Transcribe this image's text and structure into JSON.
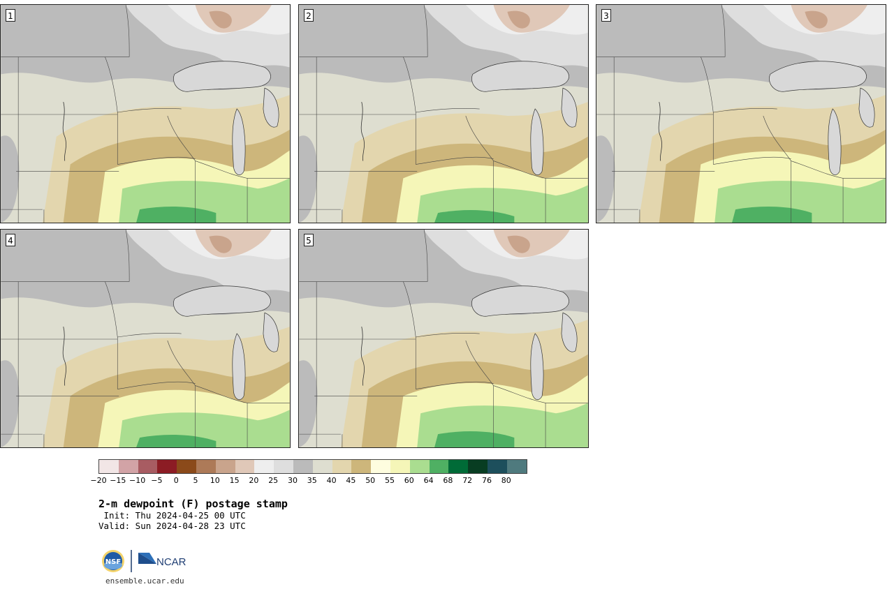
{
  "panels": [
    {
      "label": "1",
      "variant": 1
    },
    {
      "label": "2",
      "variant": 2
    },
    {
      "label": "3",
      "variant": 3
    },
    {
      "label": "4",
      "variant": 4
    },
    {
      "label": "5",
      "variant": 5
    }
  ],
  "colorbar": {
    "colors": [
      "#f2e6e6",
      "#d2a3a6",
      "#a85c62",
      "#8c1c24",
      "#8b4a1a",
      "#ad7a58",
      "#c9a48c",
      "#e0c8b8",
      "#eeeeee",
      "#dedede",
      "#bbbbbb",
      "#deded0",
      "#e3d6ae",
      "#cdb67b",
      "#fefddf",
      "#f5f6b8",
      "#aadd90",
      "#4fb063",
      "#006b37",
      "#083d22",
      "#1d4f5c",
      "#4f7a7e"
    ],
    "ticks": [
      "−20",
      "−15",
      "−10",
      "−5",
      "0",
      "5",
      "10",
      "15",
      "20",
      "25",
      "30",
      "35",
      "40",
      "45",
      "50",
      "55",
      "60",
      "64",
      "68",
      "72",
      "76",
      "80"
    ]
  },
  "title": "2-m dewpoint (F) postage stamp",
  "init": " Init: Thu 2024-04-25 00 UTC",
  "valid": "Valid: Sun 2024-04-28 23 UTC",
  "logos": {
    "nsf": "NSF",
    "ncar": "NCAR"
  },
  "footer_url": "ensemble.ucar.edu"
}
